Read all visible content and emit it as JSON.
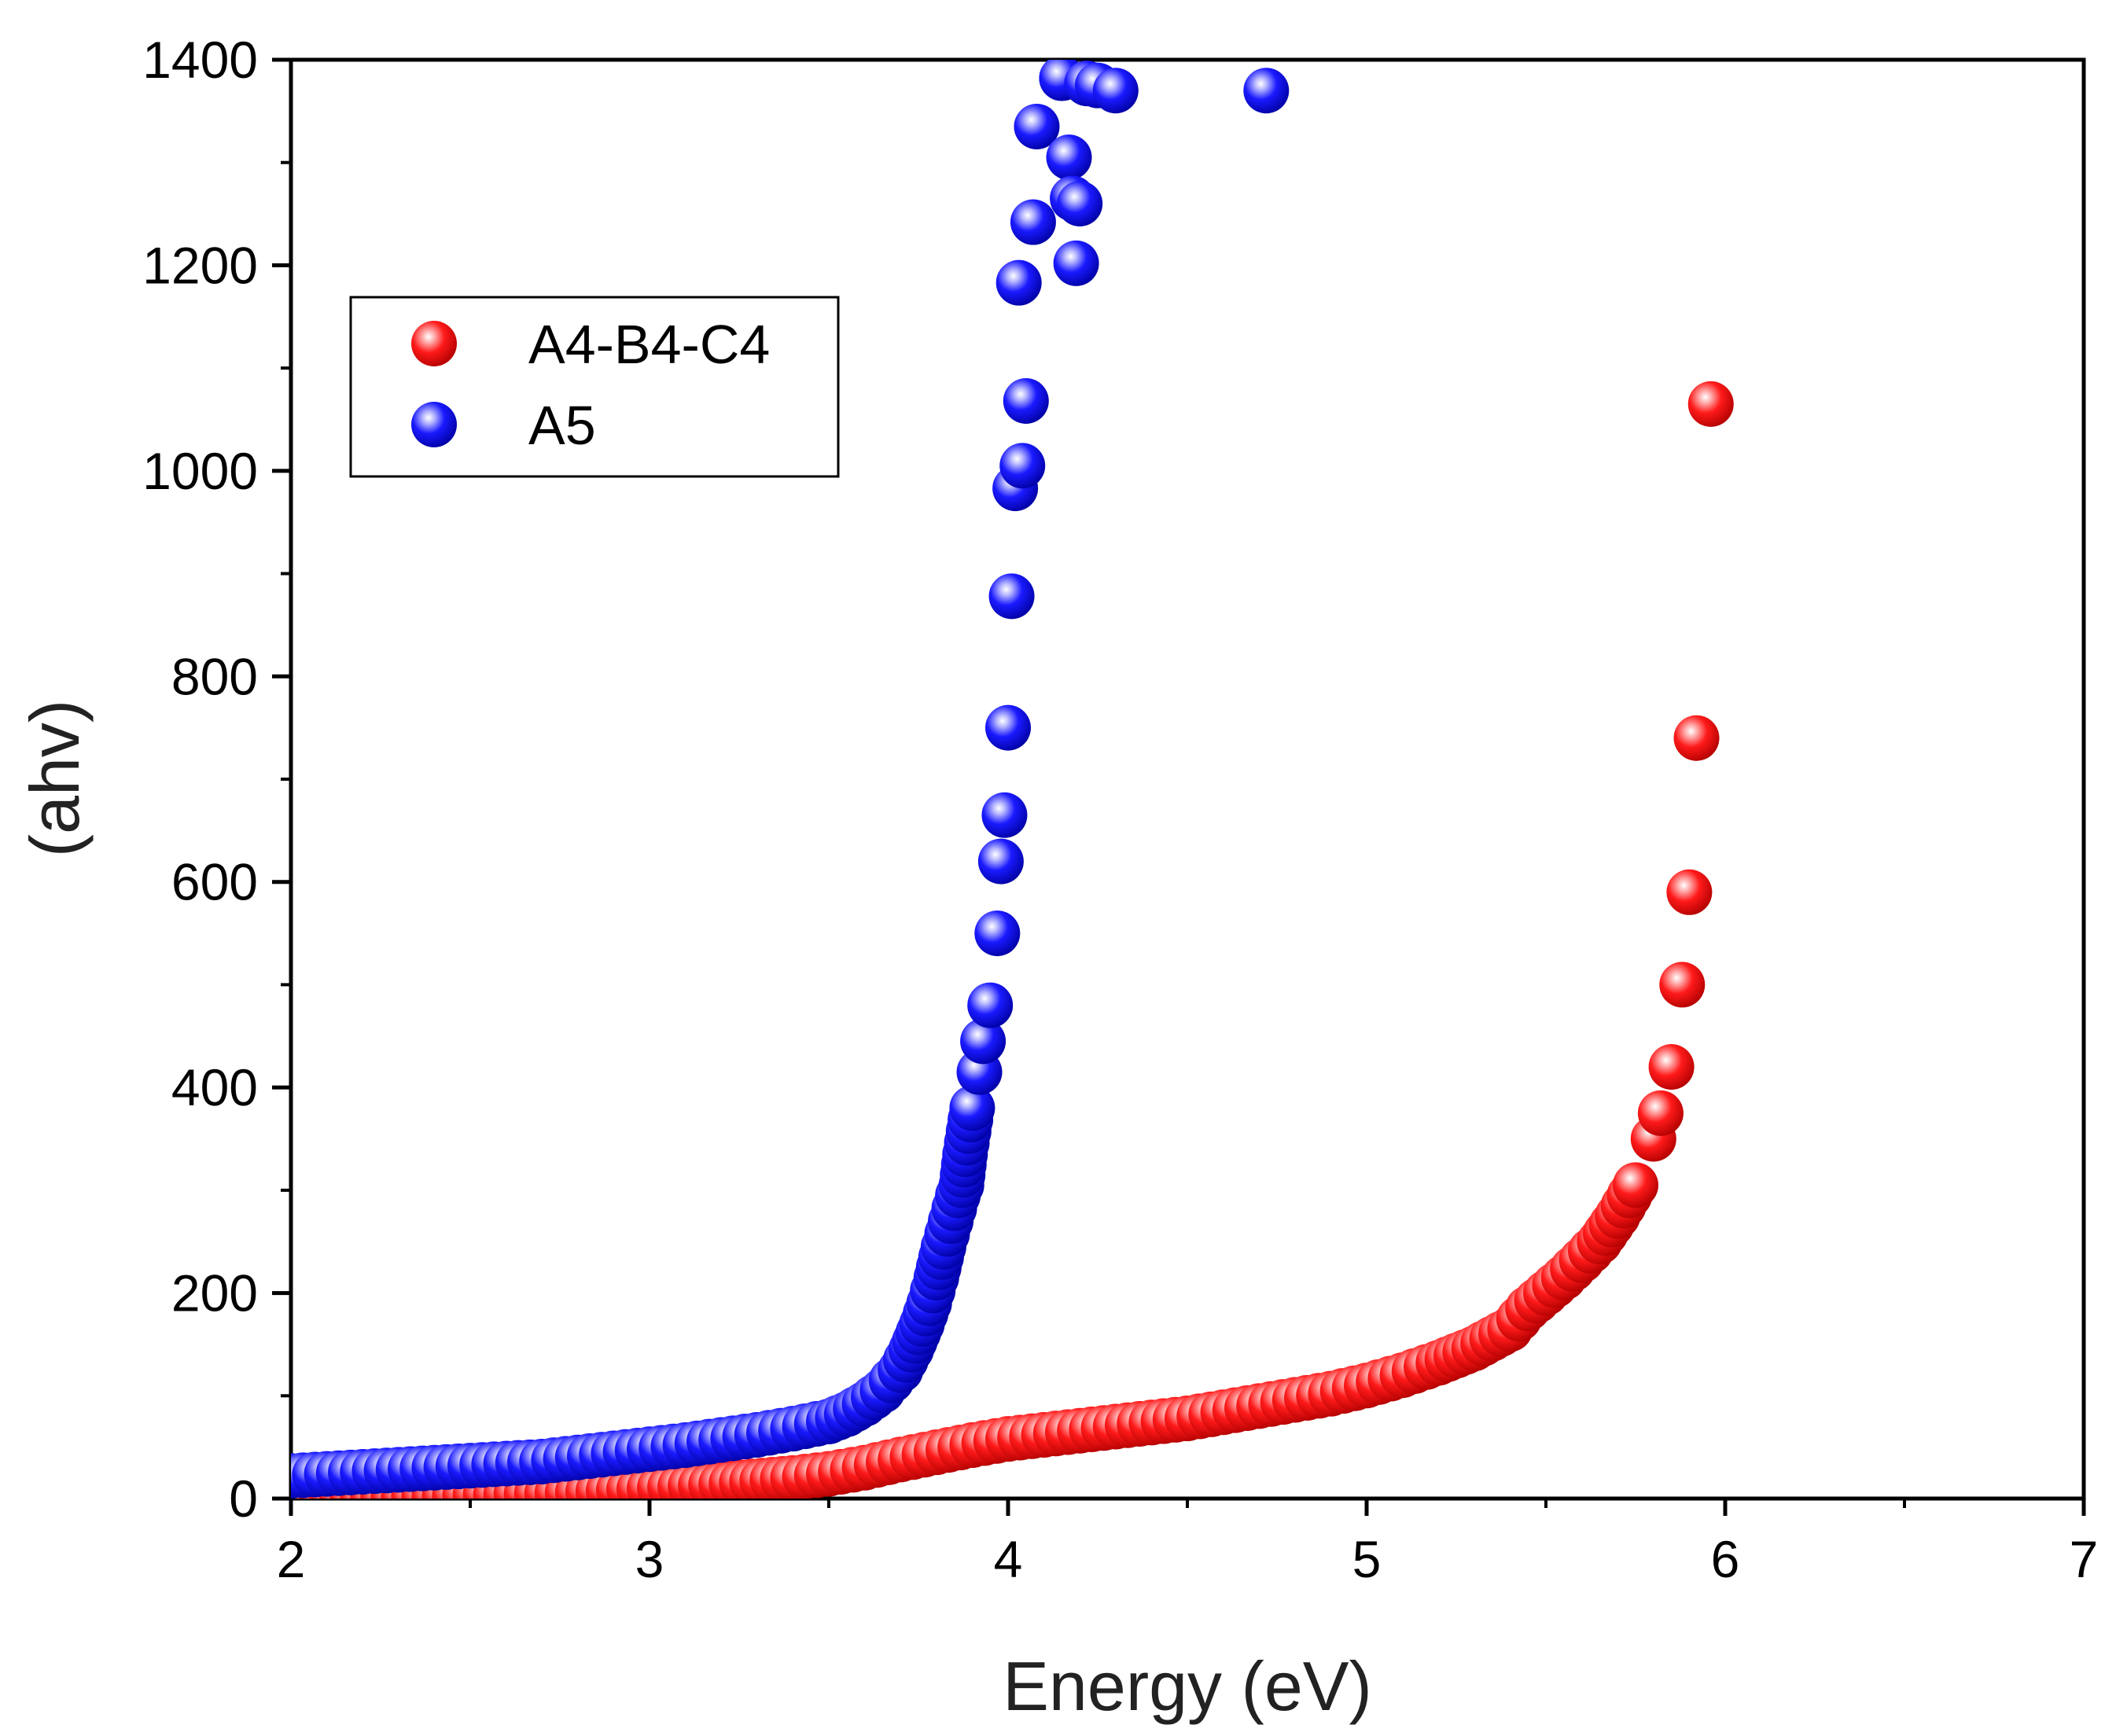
{
  "chart_data": {
    "type": "scatter",
    "title": "",
    "xlabel": "Energy (eV)",
    "ylabel": "(ahv)",
    "xlim": [
      2,
      7
    ],
    "ylim": [
      0,
      1400
    ],
    "x_ticks": [
      "2",
      "3",
      "4",
      "5",
      "6",
      "7"
    ],
    "y_ticks": [
      "0",
      "200",
      "400",
      "600",
      "800",
      "1000",
      "1200",
      "1400"
    ],
    "x_tick_values": [
      2,
      3,
      4,
      5,
      6,
      7
    ],
    "y_tick_values": [
      0,
      200,
      400,
      600,
      800,
      1000,
      1200,
      1400
    ],
    "legend_position": "top-left",
    "series": [
      {
        "name": "A4-B4-C4",
        "color": "#e60000",
        "x": [
          2.0,
          2.2,
          2.4,
          2.6,
          2.8,
          3.0,
          3.2,
          3.4,
          3.5,
          3.6,
          3.7,
          3.8,
          3.9,
          4.0,
          4.1,
          4.2,
          4.3,
          4.4,
          4.5,
          4.6,
          4.7,
          4.8,
          4.9,
          5.0,
          5.1,
          5.2,
          5.3,
          5.4,
          5.45,
          5.5,
          5.55,
          5.6,
          5.65,
          5.7,
          5.75,
          5.8,
          5.82,
          5.85,
          5.88,
          5.9,
          5.92,
          5.96
        ],
        "y": [
          0,
          1,
          2,
          4,
          6,
          10,
          14,
          20,
          24,
          30,
          38,
          45,
          52,
          58,
          62,
          66,
          70,
          74,
          78,
          84,
          90,
          96,
          102,
          110,
          120,
          132,
          146,
          165,
          185,
          200,
          215,
          232,
          250,
          275,
          305,
          350,
          375,
          420,
          500,
          590,
          740,
          1065
        ]
      },
      {
        "name": "A5",
        "color": "#0000e0",
        "x": [
          2.0,
          2.1,
          2.2,
          2.3,
          2.4,
          2.5,
          2.6,
          2.7,
          2.8,
          2.9,
          3.0,
          3.1,
          3.2,
          3.3,
          3.4,
          3.5,
          3.55,
          3.6,
          3.65,
          3.7,
          3.73,
          3.76,
          3.78,
          3.8,
          3.82,
          3.84,
          3.86,
          3.87,
          3.88,
          3.9,
          3.92,
          3.93,
          3.95,
          3.97,
          3.98,
          3.99,
          4.0,
          4.01,
          4.02,
          4.03,
          4.04,
          4.05,
          4.07,
          4.08,
          4.15,
          4.17,
          4.18,
          4.19,
          4.2,
          4.22,
          4.25,
          4.3,
          4.72
        ],
        "y": [
          22,
          24,
          26,
          28,
          30,
          32,
          34,
          36,
          40,
          44,
          48,
          52,
          57,
          62,
          68,
          75,
          82,
          92,
          105,
          125,
          145,
          170,
          190,
          215,
          245,
          270,
          295,
          305,
          335,
          380,
          415,
          445,
          480,
          550,
          620,
          665,
          750,
          878,
          983,
          1183,
          1005,
          1068,
          1242,
          1335,
          1382,
          1305,
          1265,
          1202,
          1260,
          1377,
          1375,
          1370,
          1370
        ]
      }
    ]
  }
}
